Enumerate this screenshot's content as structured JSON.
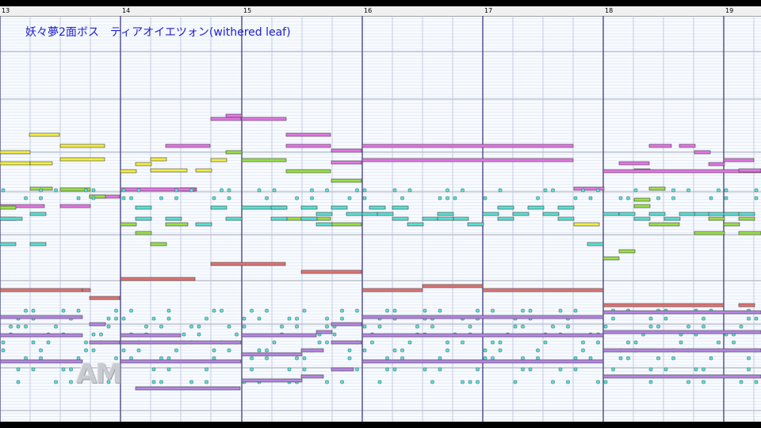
{
  "title": "妖々夢2面ボス　ティアオイエツォン(withered leaf)",
  "watermark": "AM",
  "ruler": {
    "measures": [
      "13",
      "14",
      "15",
      "16",
      "17",
      "18",
      "19"
    ]
  },
  "colors": {
    "yellow": "#f2ee44",
    "pink": "#e476e4",
    "green": "#98e048",
    "cyan": "#5ae0d6",
    "red": "#e07474",
    "violet": "#b486e4",
    "measure_line": "#4a4a88"
  }
}
